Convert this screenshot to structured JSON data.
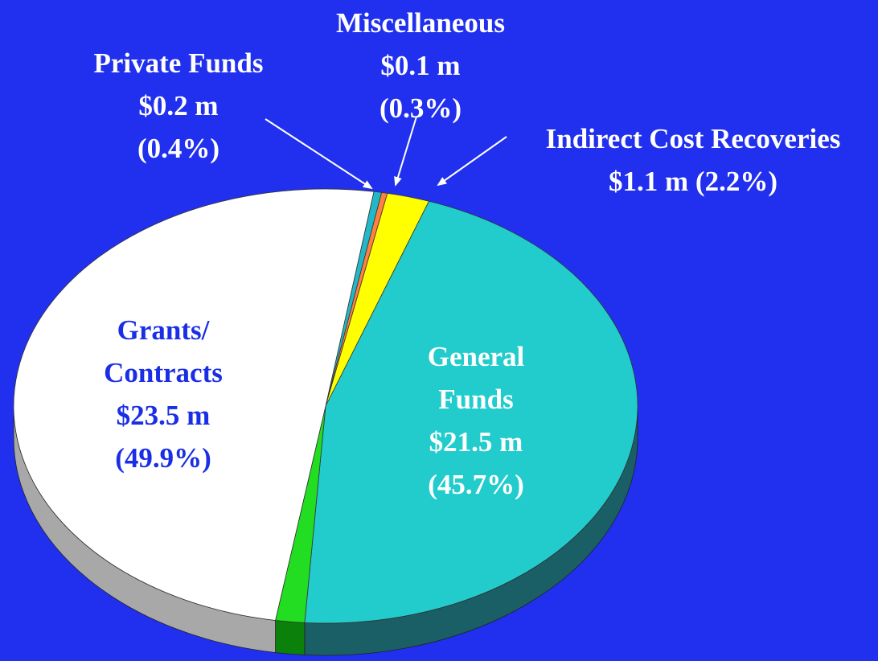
{
  "chart_data": {
    "type": "pie",
    "categories": [
      "Private Funds",
      "Miscellaneous",
      "Indirect Cost Recoveries",
      "General Funds",
      null,
      "Grants/ Contracts"
    ],
    "values": [
      0.4,
      0.3,
      2.2,
      45.7,
      1.5,
      49.9
    ],
    "value_labels": [
      "(0.4%)",
      "(0.3%)",
      "(2.2%)",
      "(45.7%)",
      null,
      "(49.9%)"
    ],
    "amount_labels": [
      "$0.2 m",
      "$0.1 m",
      "$1.1 m",
      "$21.5 m",
      null,
      "$23.5 m"
    ],
    "colors": [
      "#22b8c8",
      "#ff8040",
      "#ffff00",
      "#22cccc",
      "#22dd22",
      "#ffffff"
    ],
    "side_colors": [
      "#157a85",
      "#b05020",
      "#a0a000",
      "#1a5f66",
      "#0b800b",
      "#a8a8a8"
    ]
  }
}
